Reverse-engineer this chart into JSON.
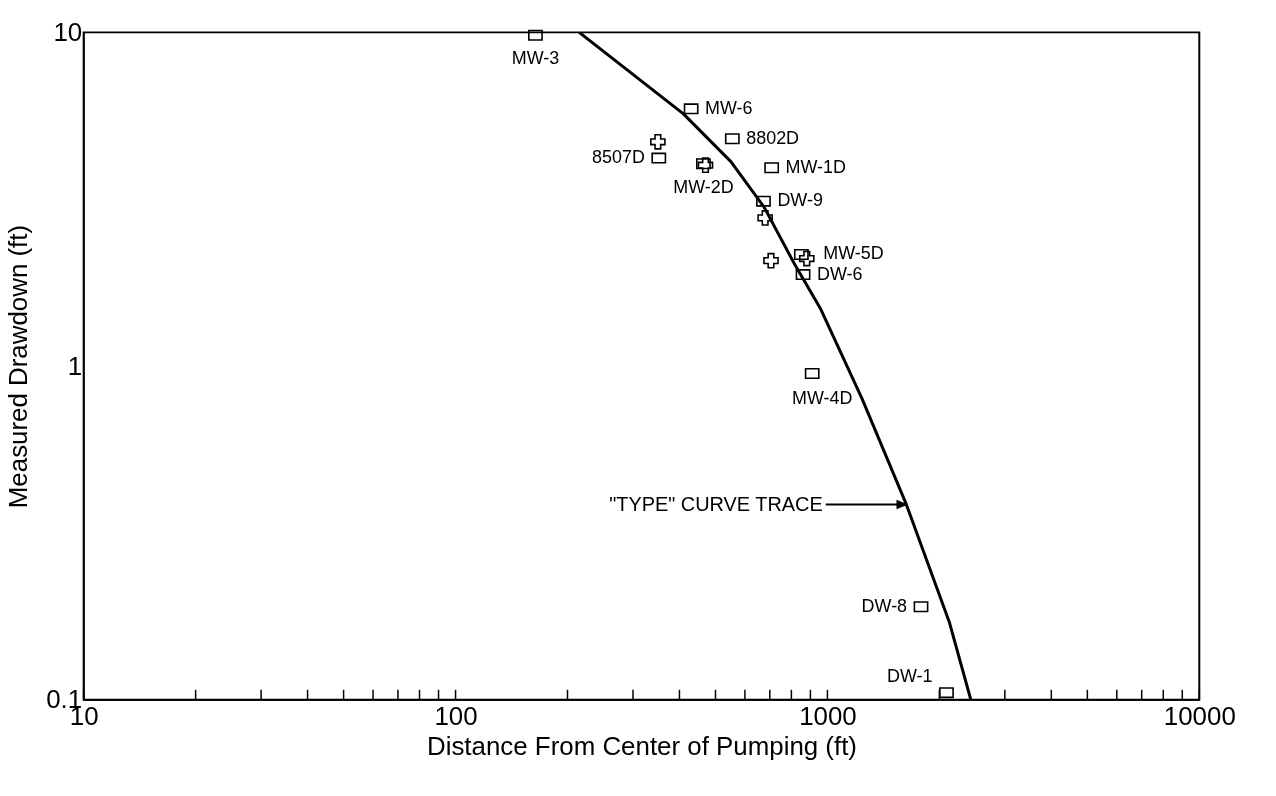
{
  "chart_data": {
    "type": "scatter",
    "xlabel": "Distance From Center of Pumping (ft)",
    "ylabel": "Measured Drawdown (ft)",
    "log": "xy",
    "grid": false,
    "xlim": [
      10,
      10000
    ],
    "ylim": [
      0.1,
      10
    ],
    "xticks": [
      10,
      {
        "value": 20,
        "label": null
      },
      {
        "value": 30,
        "label": null
      },
      {
        "value": 40,
        "label": null
      },
      {
        "value": 50,
        "label": null
      },
      {
        "value": 60,
        "label": null
      },
      {
        "value": 70,
        "label": null
      },
      {
        "value": 80,
        "label": null
      },
      {
        "value": 90,
        "label": null
      },
      100,
      {
        "value": 200,
        "label": null
      },
      {
        "value": 300,
        "label": null
      },
      {
        "value": 400,
        "label": null
      },
      {
        "value": 500,
        "label": null
      },
      {
        "value": 600,
        "label": null
      },
      {
        "value": 700,
        "label": null
      },
      {
        "value": 800,
        "label": null
      },
      {
        "value": 900,
        "label": null
      },
      1000,
      {
        "value": 2000,
        "label": null
      },
      {
        "value": 3000,
        "label": null
      },
      {
        "value": 4000,
        "label": null
      },
      {
        "value": 5000,
        "label": null
      },
      {
        "value": 6000,
        "label": null
      },
      {
        "value": 7000,
        "label": null
      },
      {
        "value": 8000,
        "label": null
      },
      {
        "value": 9000,
        "label": null
      },
      10000
    ],
    "yticks": [
      0.1,
      1,
      10
    ],
    "series": [
      {
        "type": "line",
        "color": "#000000",
        "marker": "none",
        "x": [
          215,
          410,
          550,
          675,
          820,
          960,
          1238,
          1630,
          2130,
          2430
        ],
        "values": [
          10,
          5.7,
          4.1,
          3.0,
          2.0,
          1.48,
          0.8,
          0.385,
          0.17,
          0.1
        ]
      },
      {
        "color": "#000000",
        "marker": "square",
        "x": [
          164,
          430,
          555,
          352,
          464,
          708,
          673,
          851,
          860,
          910,
          1785,
          2090
        ],
        "values": [
          9.8,
          5.9,
          4.8,
          4.2,
          4.04,
          3.93,
          3.12,
          2.16,
          1.88,
          0.95,
          0.19,
          0.105
        ]
      },
      {
        "color": "#000000",
        "marker": "cross",
        "x": [
          350,
          470,
          680,
          705,
          880
        ],
        "values": [
          4.7,
          4.0,
          2.78,
          2.07,
          2.1
        ]
      }
    ],
    "annotations": [
      "\"TYPE\" CURVE TRACE",
      {
        "text": "MW-3",
        "x": 164,
        "y": 9.8
      },
      {
        "text": "MW-6",
        "x": 430,
        "y": 5.9
      },
      {
        "text": "8802D",
        "x": 555,
        "y": 4.8
      },
      {
        "text": "8507D",
        "x": 352,
        "y": 4.2
      },
      {
        "text": "MW-2D",
        "x": 464,
        "y": 4.04
      },
      {
        "text": "MW-1D",
        "x": 708,
        "y": 3.93
      },
      {
        "text": "DW-9",
        "x": 673,
        "y": 3.12
      },
      {
        "text": "MW-5D",
        "x": 851,
        "y": 2.16
      },
      {
        "text": "DW-6",
        "x": 860,
        "y": 1.88
      },
      {
        "text": "MW-4D",
        "x": 910,
        "y": 0.95
      },
      {
        "text": "DW-8",
        "x": 1785,
        "y": 0.19
      },
      {
        "text": "DW-1",
        "x": 2090,
        "y": 0.105
      }
    ]
  }
}
